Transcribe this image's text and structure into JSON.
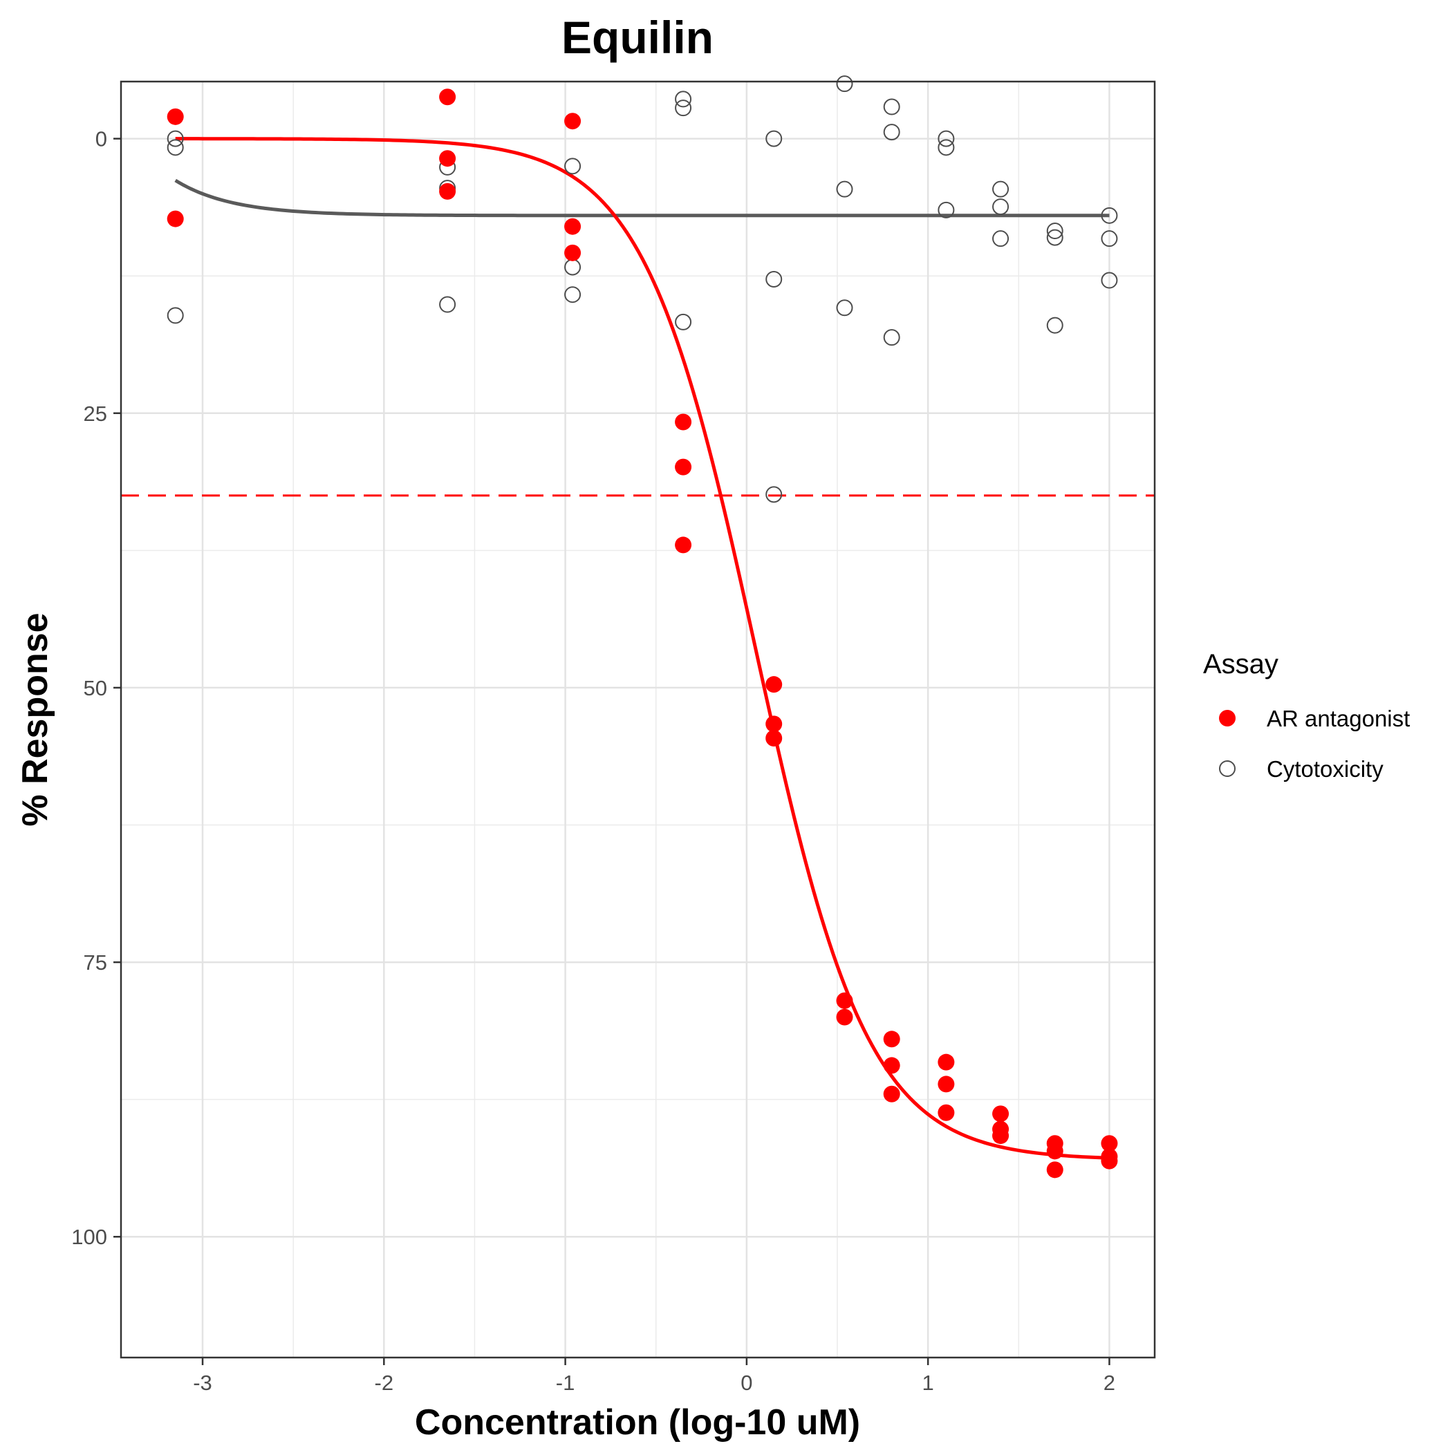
{
  "chart_data": {
    "type": "scatter",
    "title": "Equilin",
    "xlabel": "Concentration (log-10 uM)",
    "ylabel": "% Response",
    "xlim": [
      -3.45,
      2.25
    ],
    "ylim": [
      111,
      -5.2
    ],
    "y_reversed": true,
    "x_ticks": [
      -3,
      -2,
      -1,
      0,
      1,
      2
    ],
    "y_ticks": [
      0,
      25,
      50,
      75,
      100
    ],
    "grid": true,
    "legend": {
      "title": "Assay",
      "placement": "right",
      "items": [
        {
          "label": "AR antagonist",
          "marker": "filled-circle",
          "color": "#ff0000"
        },
        {
          "label": "Cytotoxicity",
          "marker": "open-circle",
          "color": "#4d4d4d"
        }
      ]
    },
    "reference_line": {
      "y": 32.5,
      "style": "dashed",
      "color": "#ff0000"
    },
    "series": [
      {
        "name": "AR antagonist",
        "color": "#ff0000",
        "marker": "filled",
        "points": [
          [
            -3.15,
            -2
          ],
          [
            -3.15,
            7.3
          ],
          [
            -1.65,
            -3.8
          ],
          [
            -1.65,
            1.8
          ],
          [
            -1.65,
            4.8
          ],
          [
            -0.96,
            -1.6
          ],
          [
            -0.96,
            8
          ],
          [
            -0.96,
            10.4
          ],
          [
            -0.35,
            25.8
          ],
          [
            -0.35,
            29.9
          ],
          [
            -0.35,
            37
          ],
          [
            0.15,
            49.7
          ],
          [
            0.15,
            53.3
          ],
          [
            0.15,
            54.6
          ],
          [
            0.54,
            78.5
          ],
          [
            0.54,
            80
          ],
          [
            0.8,
            82
          ],
          [
            0.8,
            84.4
          ],
          [
            0.8,
            87
          ],
          [
            1.1,
            84.1
          ],
          [
            1.1,
            86.1
          ],
          [
            1.1,
            88.7
          ],
          [
            1.4,
            88.8
          ],
          [
            1.4,
            90.2
          ],
          [
            1.4,
            90.8
          ],
          [
            1.7,
            91.5
          ],
          [
            1.7,
            92.2
          ],
          [
            1.7,
            93.9
          ],
          [
            2.0,
            91.5
          ],
          [
            2.0,
            92.7
          ],
          [
            2.0,
            93.1
          ]
        ],
        "fit": {
          "model": "hill",
          "bottom": 0,
          "top": 93,
          "ac50_log": 0.05,
          "slope": 1.4,
          "x_range": [
            -3.15,
            2.0
          ]
        }
      },
      {
        "name": "Cytotoxicity",
        "color": "#4d4d4d",
        "marker": "open",
        "points": [
          [
            -3.15,
            0
          ],
          [
            -3.15,
            0.8
          ],
          [
            -3.15,
            16.1
          ],
          [
            -1.65,
            2.6
          ],
          [
            -1.65,
            4.5
          ],
          [
            -1.65,
            15.1
          ],
          [
            -0.96,
            2.5
          ],
          [
            -0.96,
            11.7
          ],
          [
            -0.96,
            14.2
          ],
          [
            -0.35,
            -3.6
          ],
          [
            -0.35,
            -2.8
          ],
          [
            -0.35,
            16.7
          ],
          [
            0.15,
            0
          ],
          [
            0.15,
            12.8
          ],
          [
            0.15,
            32.4
          ],
          [
            0.54,
            -5
          ],
          [
            0.54,
            4.6
          ],
          [
            0.54,
            15.4
          ],
          [
            0.8,
            -2.9
          ],
          [
            0.8,
            -0.6
          ],
          [
            0.8,
            18.1
          ],
          [
            1.1,
            0
          ],
          [
            1.1,
            0.8
          ],
          [
            1.1,
            6.5
          ],
          [
            1.4,
            4.6
          ],
          [
            1.4,
            6.2
          ],
          [
            1.4,
            9.1
          ],
          [
            1.7,
            8.4
          ],
          [
            1.7,
            9
          ],
          [
            1.7,
            17
          ],
          [
            2.0,
            7
          ],
          [
            2.0,
            9.1
          ],
          [
            2.0,
            12.9
          ]
        ],
        "fit": {
          "model": "decay",
          "plateau": 7,
          "start": 3.8,
          "rate": 3.2,
          "x_range": [
            -3.15,
            2.0
          ]
        }
      }
    ]
  }
}
